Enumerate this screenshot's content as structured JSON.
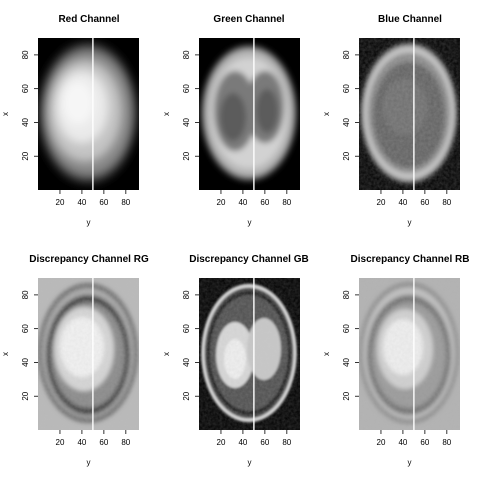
{
  "chart_data": [
    {
      "type": "heatmap",
      "title": "Red Channel",
      "xlabel": "y",
      "ylabel": "x",
      "xlim": [
        0,
        92
      ],
      "ylim": [
        0,
        90
      ],
      "xticks": [
        "20",
        "40",
        "60",
        "80"
      ],
      "yticks": [
        "20",
        "40",
        "60",
        "80"
      ],
      "vline_at": 50,
      "style": "red"
    },
    {
      "type": "heatmap",
      "title": "Green Channel",
      "xlabel": "y",
      "ylabel": "x",
      "xlim": [
        0,
        92
      ],
      "ylim": [
        0,
        90
      ],
      "xticks": [
        "20",
        "40",
        "60",
        "80"
      ],
      "yticks": [
        "20",
        "40",
        "60",
        "80"
      ],
      "vline_at": 50,
      "style": "green"
    },
    {
      "type": "heatmap",
      "title": "Blue Channel",
      "xlabel": "y",
      "ylabel": "x",
      "xlim": [
        0,
        92
      ],
      "ylim": [
        0,
        90
      ],
      "xticks": [
        "20",
        "40",
        "60",
        "80"
      ],
      "yticks": [
        "20",
        "40",
        "60",
        "80"
      ],
      "vline_at": 50,
      "style": "blue"
    },
    {
      "type": "heatmap",
      "title": "Discrepancy Channel RG",
      "xlabel": "y",
      "ylabel": "x",
      "xlim": [
        0,
        92
      ],
      "ylim": [
        0,
        90
      ],
      "xticks": [
        "20",
        "40",
        "60",
        "80"
      ],
      "yticks": [
        "20",
        "40",
        "60",
        "80"
      ],
      "vline_at": 50,
      "style": "rg"
    },
    {
      "type": "heatmap",
      "title": "Discrepancy Channel GB",
      "xlabel": "y",
      "ylabel": "x",
      "xlim": [
        0,
        92
      ],
      "ylim": [
        0,
        90
      ],
      "xticks": [
        "20",
        "40",
        "60",
        "80"
      ],
      "yticks": [
        "20",
        "40",
        "60",
        "80"
      ],
      "vline_at": 50,
      "style": "gb"
    },
    {
      "type": "heatmap",
      "title": "Discrepancy Channel RB",
      "xlabel": "y",
      "ylabel": "x",
      "xlim": [
        0,
        92
      ],
      "ylim": [
        0,
        90
      ],
      "xticks": [
        "20",
        "40",
        "60",
        "80"
      ],
      "yticks": [
        "20",
        "40",
        "60",
        "80"
      ],
      "vline_at": 50,
      "style": "rb"
    }
  ]
}
